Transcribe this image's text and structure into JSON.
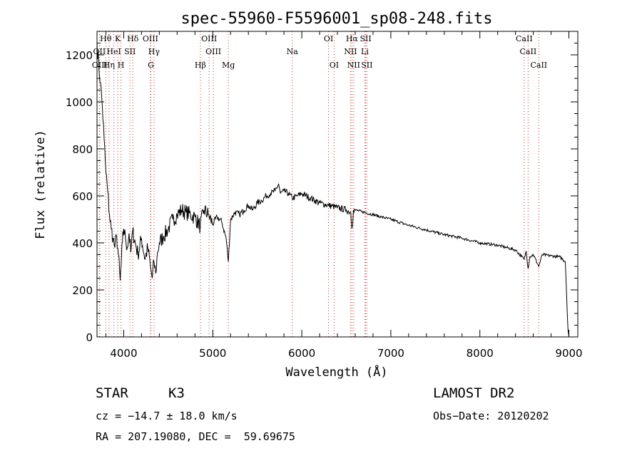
{
  "chart_data": {
    "type": "line",
    "title": "spec-55960-F5596001_sp08-248.fits",
    "xlabel": "Wavelength (Å)",
    "ylabel": "Flux (relative)",
    "xlim": [
      3700,
      9100
    ],
    "ylim": [
      0,
      1300
    ],
    "x_ticks": [
      4000,
      5000,
      6000,
      7000,
      8000,
      9000
    ],
    "y_ticks": [
      0,
      200,
      400,
      600,
      800,
      1000,
      1200
    ],
    "grid": false,
    "series": [
      {
        "x": [
          3700,
          3720,
          3740,
          3760,
          3780,
          3800,
          3820,
          3840,
          3860,
          3880,
          3900,
          3920,
          3940,
          3960,
          3970,
          3985,
          4000,
          4020,
          4040,
          4060,
          4080,
          4100,
          4130,
          4160,
          4200,
          4240,
          4270,
          4300,
          4320,
          4340,
          4360,
          4380,
          4400,
          4450,
          4500,
          4550,
          4600,
          4650,
          4700,
          4750,
          4800,
          4860,
          4900,
          4950,
          5000,
          5050,
          5100,
          5150,
          5175,
          5200,
          5250,
          5300,
          5350,
          5400,
          5450,
          5500,
          5550,
          5600,
          5650,
          5700,
          5740,
          5760,
          5800,
          5850,
          5893,
          5950,
          6000,
          6100,
          6200,
          6300,
          6400,
          6500,
          6550,
          6563,
          6580,
          6600,
          6700,
          6800,
          6900,
          7000,
          7200,
          7400,
          7600,
          7800,
          8000,
          8200,
          8400,
          8498,
          8520,
          8542,
          8560,
          8600,
          8662,
          8700,
          8800,
          8900,
          8960,
          8980,
          8990,
          9000
        ],
        "y": [
          1250,
          1150,
          1080,
          980,
          840,
          700,
          620,
          520,
          460,
          420,
          380,
          430,
          350,
          240,
          300,
          400,
          460,
          420,
          380,
          440,
          360,
          450,
          400,
          350,
          420,
          330,
          380,
          300,
          250,
          320,
          270,
          360,
          400,
          430,
          460,
          500,
          520,
          540,
          530,
          520,
          510,
          470,
          540,
          520,
          480,
          510,
          490,
          420,
          320,
          500,
          530,
          520,
          540,
          560,
          540,
          570,
          580,
          600,
          610,
          620,
          650,
          610,
          620,
          610,
          590,
          600,
          610,
          590,
          570,
          560,
          550,
          540,
          530,
          460,
          540,
          540,
          530,
          520,
          510,
          500,
          475,
          455,
          435,
          420,
          400,
          390,
          370,
          330,
          365,
          290,
          340,
          350,
          300,
          350,
          345,
          340,
          320,
          120,
          30,
          0
        ]
      }
    ],
    "lines": [
      {
        "name": "Hθ",
        "x": 3798
      },
      {
        "name": "OII",
        "x": 3727
      },
      {
        "name": "OIII",
        "x": 3730
      },
      {
        "name": "Hη",
        "x": 3835
      },
      {
        "name": "HeI",
        "x": 3889
      },
      {
        "name": "K",
        "x": 3933
      },
      {
        "name": "H",
        "x": 3969
      },
      {
        "name": "SII",
        "x": 4070
      },
      {
        "name": "Hδ",
        "x": 4102
      },
      {
        "name": "OIII",
        "x": 4300
      },
      {
        "name": "Hγ",
        "x": 4340
      },
      {
        "name": "G",
        "x": 4305
      },
      {
        "name": "Hβ",
        "x": 4861
      },
      {
        "name": "OIII",
        "x": 4959
      },
      {
        "name": "OIII",
        "x": 5007
      },
      {
        "name": "Mg",
        "x": 5175
      },
      {
        "name": "Na",
        "x": 5893
      },
      {
        "name": "OI",
        "x": 6300
      },
      {
        "name": "OI",
        "x": 6363
      },
      {
        "name": "Hα",
        "x": 6563
      },
      {
        "name": "NII",
        "x": 6548
      },
      {
        "name": "NII",
        "x": 6583
      },
      {
        "name": "SII",
        "x": 6717
      },
      {
        "name": "SII",
        "x": 6731
      },
      {
        "name": "Li",
        "x": 6708
      },
      {
        "name": "CaII",
        "x": 8498
      },
      {
        "name": "CaII",
        "x": 8542
      },
      {
        "name": "CaII",
        "x": 8662
      }
    ]
  },
  "info": {
    "object_class": "STAR",
    "subclass": "K3",
    "survey": "LAMOST DR2",
    "cz": "cz = −14.7 ± 18.0 km/s",
    "obs_date": "Obs−Date: 20120202",
    "coords": "RA = 207.19080, DEC =  59.69675"
  },
  "colors": {
    "spectrum": "#000000",
    "line_markers": "#cc3333",
    "axes": "#000000"
  }
}
